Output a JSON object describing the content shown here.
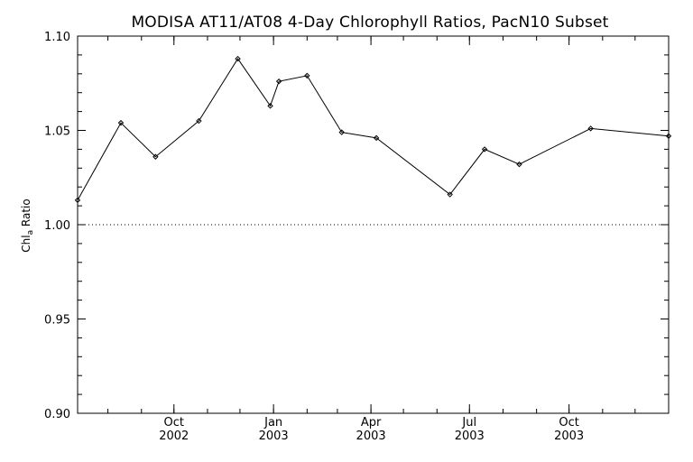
{
  "chart_data": {
    "type": "line",
    "title": "MODISA AT11/AT08 4-Day Chlorophyll Ratios, PacN10 Subset",
    "ylabel_main": "Chl",
    "ylabel_sub": "a",
    "ylabel_rest": " Ratio",
    "ylim": [
      0.9,
      1.1
    ],
    "xlim": [
      "2002-07-04",
      "2004-01-01"
    ],
    "y_ticks": [
      {
        "value": 0.9,
        "label": "0.90"
      },
      {
        "value": 0.95,
        "label": "0.95"
      },
      {
        "value": 1.0,
        "label": "1.00"
      },
      {
        "value": 1.05,
        "label": "1.05"
      },
      {
        "value": 1.1,
        "label": "1.10"
      }
    ],
    "y_minor_step": 0.01,
    "x_ticks": [
      {
        "date": "2002-10-01",
        "month": "Oct",
        "year": "2002"
      },
      {
        "date": "2003-01-01",
        "month": "Jan",
        "year": "2003"
      },
      {
        "date": "2003-04-01",
        "month": "Apr",
        "year": "2003"
      },
      {
        "date": "2003-07-01",
        "month": "Jul",
        "year": "2003"
      },
      {
        "date": "2003-10-01",
        "month": "Oct",
        "year": "2003"
      }
    ],
    "reference_line": 1.0,
    "series": [
      {
        "x": [
          "2002-07-04",
          "2002-08-13",
          "2002-09-14",
          "2002-10-24",
          "2002-11-29",
          "2002-12-29",
          "2003-01-06",
          "2003-02-01",
          "2003-03-05",
          "2003-04-06",
          "2003-06-13",
          "2003-07-15",
          "2003-08-16",
          "2003-10-21",
          "2004-01-01"
        ],
        "y": [
          1.013,
          1.054,
          1.036,
          1.055,
          1.088,
          1.063,
          1.076,
          1.079,
          1.049,
          1.046,
          1.016,
          1.04,
          1.032,
          1.051,
          1.047
        ]
      }
    ]
  }
}
